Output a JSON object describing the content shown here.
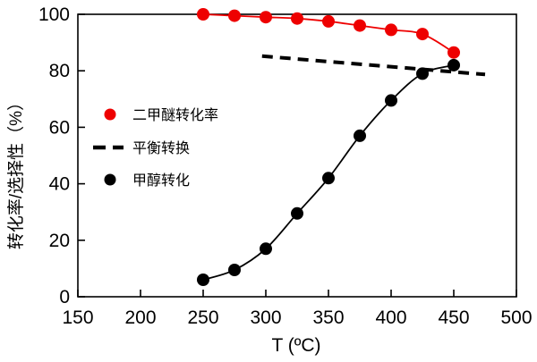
{
  "chart_data": {
    "type": "line",
    "title": "",
    "xlabel": "T (ºC)",
    "ylabel": "转化率/选择性（%）",
    "xlim": [
      150,
      500
    ],
    "ylim": [
      0,
      100
    ],
    "x_ticks": [
      150,
      200,
      250,
      300,
      350,
      400,
      450,
      500
    ],
    "y_ticks": [
      0,
      20,
      40,
      60,
      80,
      100
    ],
    "grid": false,
    "legend_position": "inside-left-middle",
    "series": [
      {
        "name": "二甲醚转化率",
        "style": "scatter-line",
        "color": "#ee0000",
        "marker": "circle",
        "x": [
          250,
          275,
          300,
          325,
          350,
          375,
          400,
          425,
          450
        ],
        "values": [
          100,
          99.5,
          99,
          98.5,
          97.5,
          96,
          94.5,
          93,
          86.5
        ]
      },
      {
        "name": "平衡转换",
        "style": "dashed-line",
        "color": "#000000",
        "marker": "none",
        "x": [
          297,
          475
        ],
        "values": [
          85.2,
          78.7
        ]
      },
      {
        "name": "甲醇转化",
        "style": "scatter-line",
        "color": "#000000",
        "marker": "circle",
        "x": [
          250,
          275,
          300,
          325,
          350,
          375,
          400,
          425,
          450
        ],
        "values": [
          6,
          9.5,
          17,
          29.5,
          42,
          57,
          69.5,
          79,
          82
        ]
      }
    ]
  },
  "colors": {
    "red": "#ee0000",
    "black": "#000000",
    "background": "#ffffff"
  }
}
